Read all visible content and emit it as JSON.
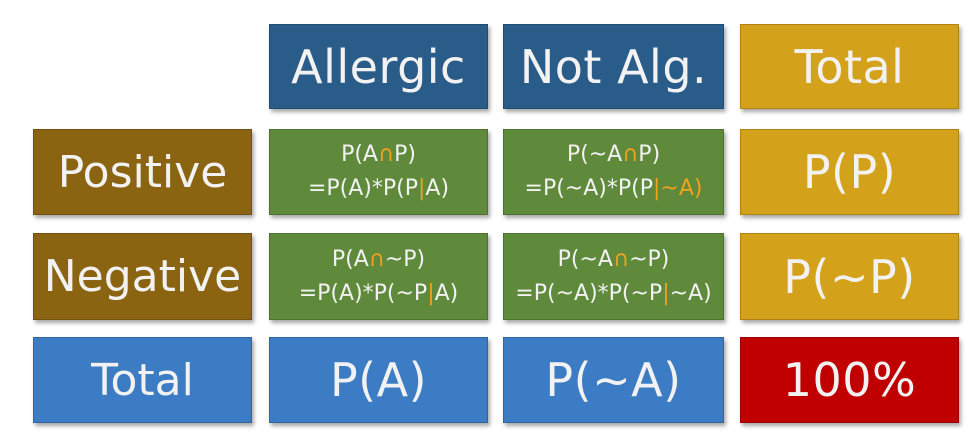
{
  "header": {
    "allergic": "Allergic",
    "not_allergic": "Not Alg.",
    "total": "Total"
  },
  "rows": {
    "positive": "Positive",
    "negative": "Negative",
    "total": "Total"
  },
  "cells": {
    "pos_allergic": {
      "l1": [
        "P(A",
        "∩",
        "P)"
      ],
      "l2": [
        "=P(A)*P(P",
        "|",
        "A)"
      ]
    },
    "pos_not_allergic": {
      "l1": [
        "P(~A",
        "∩",
        "P)"
      ],
      "l2": [
        "=P(~A)*P(P",
        "|",
        "~A)"
      ]
    },
    "pos_total": "P(P)",
    "neg_allergic": {
      "l1": [
        "P(A",
        "∩",
        "~P)"
      ],
      "l2": [
        "=P(A)*P(~P",
        "|",
        "A)"
      ]
    },
    "neg_not_allergic": {
      "l1": [
        "P(~A",
        "∩",
        "~P)"
      ],
      "l2": [
        "=P(~A)*P(~P",
        "|",
        "~A)"
      ]
    },
    "neg_total": "P(~P)",
    "total_allergic": "P(A)",
    "total_not_allergic": "P(~A)",
    "grand_total": "100%"
  },
  "colors": {
    "header_blue": "#2a5c8a",
    "gold": "#d4a11a",
    "brown": "#8a6410",
    "green": "#5f8a3c",
    "light_blue": "#3b7cc4",
    "red": "#c00000",
    "accent_orange": "#f0a21e"
  }
}
